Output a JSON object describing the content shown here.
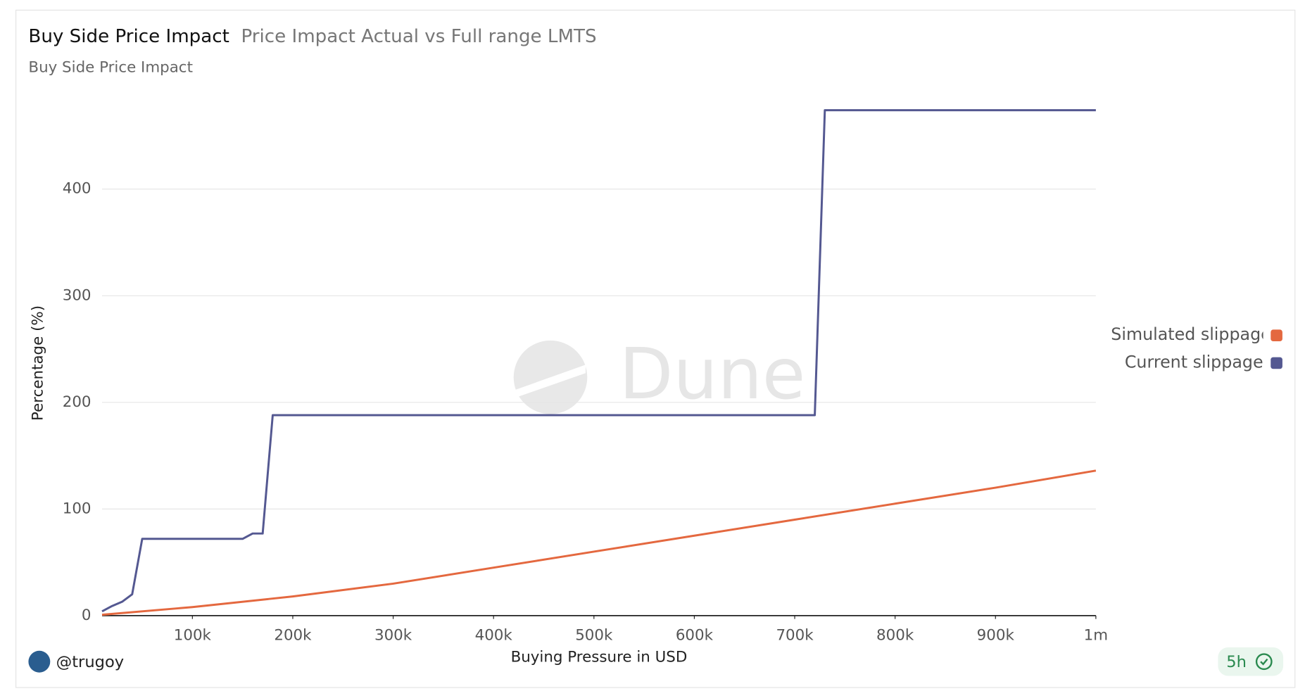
{
  "chart_data": {
    "type": "line",
    "title": "Buy Side Price Impact",
    "subtitle": "Price Impact Actual vs Full range LMTS",
    "caption": "Buy Side Price Impact",
    "xlabel": "Buying Pressure in USD",
    "ylabel": "Percentage (%)",
    "watermark": "Dune",
    "author": "@trugoy",
    "age": "5h",
    "xlim": [
      10000,
      1000000
    ],
    "ylim": [
      0,
      480
    ],
    "xticks": [
      {
        "value": 100000,
        "label": "100k"
      },
      {
        "value": 200000,
        "label": "200k"
      },
      {
        "value": 300000,
        "label": "300k"
      },
      {
        "value": 400000,
        "label": "400k"
      },
      {
        "value": 500000,
        "label": "500k"
      },
      {
        "value": 600000,
        "label": "600k"
      },
      {
        "value": 700000,
        "label": "700k"
      },
      {
        "value": 800000,
        "label": "800k"
      },
      {
        "value": 900000,
        "label": "900k"
      },
      {
        "value": 1000000,
        "label": "1m"
      }
    ],
    "yticks": [
      0,
      100,
      200,
      300,
      400
    ],
    "grid": true,
    "legend": "right",
    "series": [
      {
        "name": "Simulated slippage",
        "color": "#e4683f",
        "x": [
          10000,
          100000,
          200000,
          300000,
          400000,
          500000,
          600000,
          700000,
          800000,
          900000,
          1000000
        ],
        "values": [
          0.8,
          8,
          18,
          30,
          45,
          60,
          75,
          90,
          105,
          120,
          136
        ]
      },
      {
        "name": "Current slippage",
        "color": "#545891",
        "x": [
          10000,
          20000,
          30000,
          40000,
          50000,
          150000,
          160000,
          170000,
          180000,
          720000,
          730000,
          1000000
        ],
        "values": [
          4,
          9,
          13,
          20,
          72,
          72,
          77,
          77,
          188,
          188,
          474,
          474
        ]
      }
    ]
  }
}
